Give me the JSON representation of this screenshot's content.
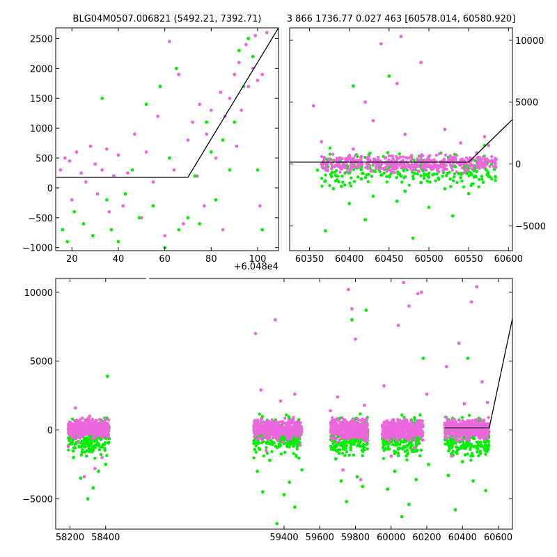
{
  "colors": {
    "series_a": "#00ee00",
    "series_b": "#ee66dd",
    "model": "#000000",
    "axes": "#000000"
  },
  "chart_data": [
    {
      "type": "scatter",
      "id": "zoom",
      "title": "BLG04M0507.006821 (5492.21, 7392.71)",
      "offset_label": "+6.048e4",
      "xlim": [
        13,
        109
      ],
      "ylim": [
        -1050,
        2680
      ],
      "xticks": [
        "20",
        "40",
        "60",
        "80",
        "100"
      ],
      "xtick_values": [
        20,
        40,
        60,
        80,
        100
      ],
      "yticks": [
        "−1000",
        "−500",
        "0",
        "500",
        "1000",
        "1500",
        "2000",
        "2500"
      ],
      "ytick_values": [
        -1000,
        -500,
        0,
        500,
        1000,
        1500,
        2000,
        2500
      ],
      "y_axis_side": "left",
      "grid": false,
      "model_line": [
        [
          13,
          180
        ],
        [
          70,
          180
        ],
        [
          109,
          2680
        ]
      ],
      "series": [
        {
          "color_key": "series_b",
          "points": [
            [
              15,
              300
            ],
            [
              17,
              500
            ],
            [
              19,
              450
            ],
            [
              20,
              -200
            ],
            [
              22,
              600
            ],
            [
              24,
              250
            ],
            [
              26,
              100
            ],
            [
              28,
              700
            ],
            [
              30,
              400
            ],
            [
              31,
              -100
            ],
            [
              33,
              300
            ],
            [
              35,
              650
            ],
            [
              36,
              -400
            ],
            [
              38,
              200
            ],
            [
              40,
              550
            ],
            [
              42,
              -300
            ],
            [
              44,
              250
            ],
            [
              47,
              900
            ],
            [
              50,
              -500
            ],
            [
              52,
              600
            ],
            [
              55,
              100
            ],
            [
              57,
              1200
            ],
            [
              60,
              -800
            ],
            [
              62,
              2450
            ],
            [
              64,
              300
            ],
            [
              66,
              1900
            ],
            [
              68,
              -600
            ],
            [
              70,
              800
            ],
            [
              72,
              1100
            ],
            [
              74,
              200
            ],
            [
              75,
              1400
            ],
            [
              77,
              -300
            ],
            [
              78,
              900
            ],
            [
              80,
              1300
            ],
            [
              82,
              500
            ],
            [
              84,
              1600
            ],
            [
              85,
              -700
            ],
            [
              86,
              1200
            ],
            [
              88,
              1500
            ],
            [
              90,
              1900
            ],
            [
              91,
              700
            ],
            [
              92,
              2100
            ],
            [
              93,
              1300
            ],
            [
              95,
              2400
            ],
            [
              96,
              1700
            ],
            [
              98,
              2000
            ],
            [
              99,
              2550
            ],
            [
              100,
              1800
            ],
            [
              101,
              -300
            ],
            [
              102,
              1900
            ],
            [
              104,
              2600
            ]
          ]
        },
        {
          "color_key": "series_a",
          "points": [
            [
              16,
              -700
            ],
            [
              18,
              -900
            ],
            [
              21,
              -400
            ],
            [
              25,
              -600
            ],
            [
              29,
              -800
            ],
            [
              33,
              1500
            ],
            [
              35,
              -200
            ],
            [
              37,
              -700
            ],
            [
              40,
              -900
            ],
            [
              43,
              -100
            ],
            [
              46,
              300
            ],
            [
              49,
              -500
            ],
            [
              52,
              1400
            ],
            [
              55,
              -300
            ],
            [
              58,
              1700
            ],
            [
              60,
              -1000
            ],
            [
              62,
              500
            ],
            [
              65,
              2000
            ],
            [
              66,
              -700
            ],
            [
              70,
              -500
            ],
            [
              73,
              200
            ],
            [
              75,
              -600
            ],
            [
              78,
              1100
            ],
            [
              80,
              600
            ],
            [
              82,
              -200
            ],
            [
              85,
              800
            ],
            [
              88,
              300
            ],
            [
              90,
              1100
            ],
            [
              92,
              2300
            ],
            [
              94,
              1700
            ],
            [
              96,
              2500
            ],
            [
              98,
              2200
            ],
            [
              100,
              300
            ],
            [
              102,
              -700
            ]
          ]
        }
      ]
    },
    {
      "type": "scatter",
      "id": "recent",
      "title": "3 866 1736.77 0.027 463 [60578.014, 60580.920]",
      "xlim": [
        60325,
        60605
      ],
      "ylim": [
        -7000,
        11000
      ],
      "xticks": [
        "60350",
        "60400",
        "60450",
        "60500",
        "60550",
        "60600"
      ],
      "xtick_values": [
        60350,
        60400,
        60450,
        60500,
        60550,
        60600
      ],
      "yticks": [
        "−5000",
        "0",
        "5000",
        "10000"
      ],
      "ytick_values": [
        -5000,
        0,
        5000,
        10000
      ],
      "y_axis_side": "right",
      "grid": false,
      "model_line": [
        [
          60325,
          150
        ],
        [
          60550,
          150
        ],
        [
          60605,
          3600
        ]
      ],
      "series": [
        {
          "color_key": "series_a",
          "points": [
            [
              60360,
              -500
            ],
            [
              60370,
              -5400
            ],
            [
              60380,
              -2000
            ],
            [
              60390,
              -1800
            ],
            [
              60400,
              -3200
            ],
            [
              60405,
              6300
            ],
            [
              60415,
              -1200
            ],
            [
              60420,
              -4500
            ],
            [
              60430,
              -2600
            ],
            [
              60440,
              -900
            ],
            [
              60450,
              7100
            ],
            [
              60460,
              -3000
            ],
            [
              60470,
              -2200
            ],
            [
              60480,
              -6000
            ],
            [
              60490,
              -1500
            ],
            [
              60500,
              -3500
            ],
            [
              60510,
              -800
            ],
            [
              60520,
              -2000
            ],
            [
              60530,
              -4200
            ],
            [
              60540,
              -1100
            ],
            [
              60550,
              -2400
            ],
            [
              60560,
              -600
            ],
            [
              60570,
              1500
            ],
            [
              60575,
              -1000
            ]
          ]
        },
        {
          "color_key": "series_b",
          "points": [
            [
              60355,
              4700
            ],
            [
              60365,
              1800
            ],
            [
              60375,
              400
            ],
            [
              60385,
              200
            ],
            [
              60395,
              -300
            ],
            [
              60405,
              1200
            ],
            [
              60415,
              600
            ],
            [
              60420,
              5000
            ],
            [
              60430,
              3500
            ],
            [
              60440,
              9700
            ],
            [
              60445,
              100
            ],
            [
              60455,
              400
            ],
            [
              60460,
              6500
            ],
            [
              60465,
              10300
            ],
            [
              60470,
              2400
            ],
            [
              60480,
              -200
            ],
            [
              60490,
              8200
            ],
            [
              60500,
              600
            ],
            [
              60510,
              -100
            ],
            [
              60520,
              2800
            ],
            [
              60530,
              500
            ],
            [
              60540,
              1700
            ],
            [
              60550,
              300
            ],
            [
              60560,
              900
            ],
            [
              60570,
              2200
            ],
            [
              60575,
              1500
            ]
          ]
        }
      ]
    },
    {
      "type": "scatter",
      "id": "full",
      "title": "",
      "xlim": [
        58120,
        60680
      ],
      "ylim": [
        -7200,
        11000
      ],
      "xticks": [
        "58200",
        "58400",
        "59400",
        "59600",
        "59800",
        "60000",
        "60200",
        "60400",
        "60600"
      ],
      "xtick_values": [
        58200,
        58400,
        59400,
        59600,
        59800,
        60000,
        60200,
        60400,
        60600
      ],
      "yticks": [
        "−5000",
        "0",
        "5000",
        "10000"
      ],
      "ytick_values": [
        -5000,
        0,
        5000,
        10000
      ],
      "y_axis_side": "left",
      "grid": false,
      "season_ranges": [
        [
          58190,
          58420
        ],
        [
          59230,
          59500
        ],
        [
          59660,
          59870
        ],
        [
          59950,
          60180
        ],
        [
          60300,
          60550
        ]
      ],
      "model_line": [
        [
          60300,
          150
        ],
        [
          60550,
          150
        ],
        [
          60680,
          8100
        ]
      ],
      "series": [
        {
          "color_key": "series_a",
          "points": [
            [
              58220,
              -2000
            ],
            [
              58260,
              -3500
            ],
            [
              58300,
              -5000
            ],
            [
              58330,
              -4200
            ],
            [
              58360,
              -3000
            ],
            [
              58400,
              -2500
            ],
            [
              58410,
              3900
            ],
            [
              59250,
              -3000
            ],
            [
              59280,
              -4500
            ],
            [
              59320,
              -2200
            ],
            [
              59360,
              -6800
            ],
            [
              59400,
              -4700
            ],
            [
              59430,
              -3800
            ],
            [
              59460,
              -5600
            ],
            [
              59500,
              -2900
            ],
            [
              59690,
              -2100
            ],
            [
              59720,
              -3700
            ],
            [
              59750,
              -5200
            ],
            [
              59780,
              8000
            ],
            [
              59810,
              -3400
            ],
            [
              59840,
              -4100
            ],
            [
              59860,
              8700
            ],
            [
              59980,
              -4300
            ],
            [
              60020,
              -3000
            ],
            [
              60060,
              -6300
            ],
            [
              60100,
              -5400
            ],
            [
              60140,
              -3600
            ],
            [
              60180,
              5200
            ],
            [
              60210,
              -2500
            ],
            [
              60320,
              -3300
            ],
            [
              60360,
              -5800
            ],
            [
              60400,
              -2300
            ],
            [
              60430,
              5200
            ],
            [
              60460,
              -3700
            ],
            [
              60500,
              -1700
            ],
            [
              60530,
              -4400
            ]
          ]
        },
        {
          "color_key": "series_b",
          "points": [
            [
              58190,
              -1200
            ],
            [
              58230,
              1600
            ],
            [
              58250,
              -900
            ],
            [
              58280,
              -3400
            ],
            [
              58310,
              1000
            ],
            [
              58340,
              -2800
            ],
            [
              58380,
              -2000
            ],
            [
              59240,
              7000
            ],
            [
              59270,
              2900
            ],
            [
              59300,
              -1500
            ],
            [
              59350,
              8000
            ],
            [
              59380,
              2100
            ],
            [
              59420,
              -600
            ],
            [
              59460,
              2600
            ],
            [
              59490,
              -1100
            ],
            [
              59660,
              1400
            ],
            [
              59700,
              2400
            ],
            [
              59730,
              -2900
            ],
            [
              59760,
              10200
            ],
            [
              59780,
              8800
            ],
            [
              59800,
              6600
            ],
            [
              59830,
              -3600
            ],
            [
              59850,
              1800
            ],
            [
              59960,
              3200
            ],
            [
              60000,
              -1900
            ],
            [
              60040,
              7600
            ],
            [
              60070,
              10700
            ],
            [
              60100,
              9000
            ],
            [
              60130,
              -1300
            ],
            [
              60150,
              9900
            ],
            [
              60170,
              10000
            ],
            [
              60200,
              2600
            ],
            [
              60310,
              4600
            ],
            [
              60340,
              -1900
            ],
            [
              60380,
              6300
            ],
            [
              60410,
              1900
            ],
            [
              60450,
              9300
            ],
            [
              60480,
              10400
            ],
            [
              60510,
              3500
            ],
            [
              60540,
              2000
            ]
          ]
        }
      ]
    }
  ]
}
